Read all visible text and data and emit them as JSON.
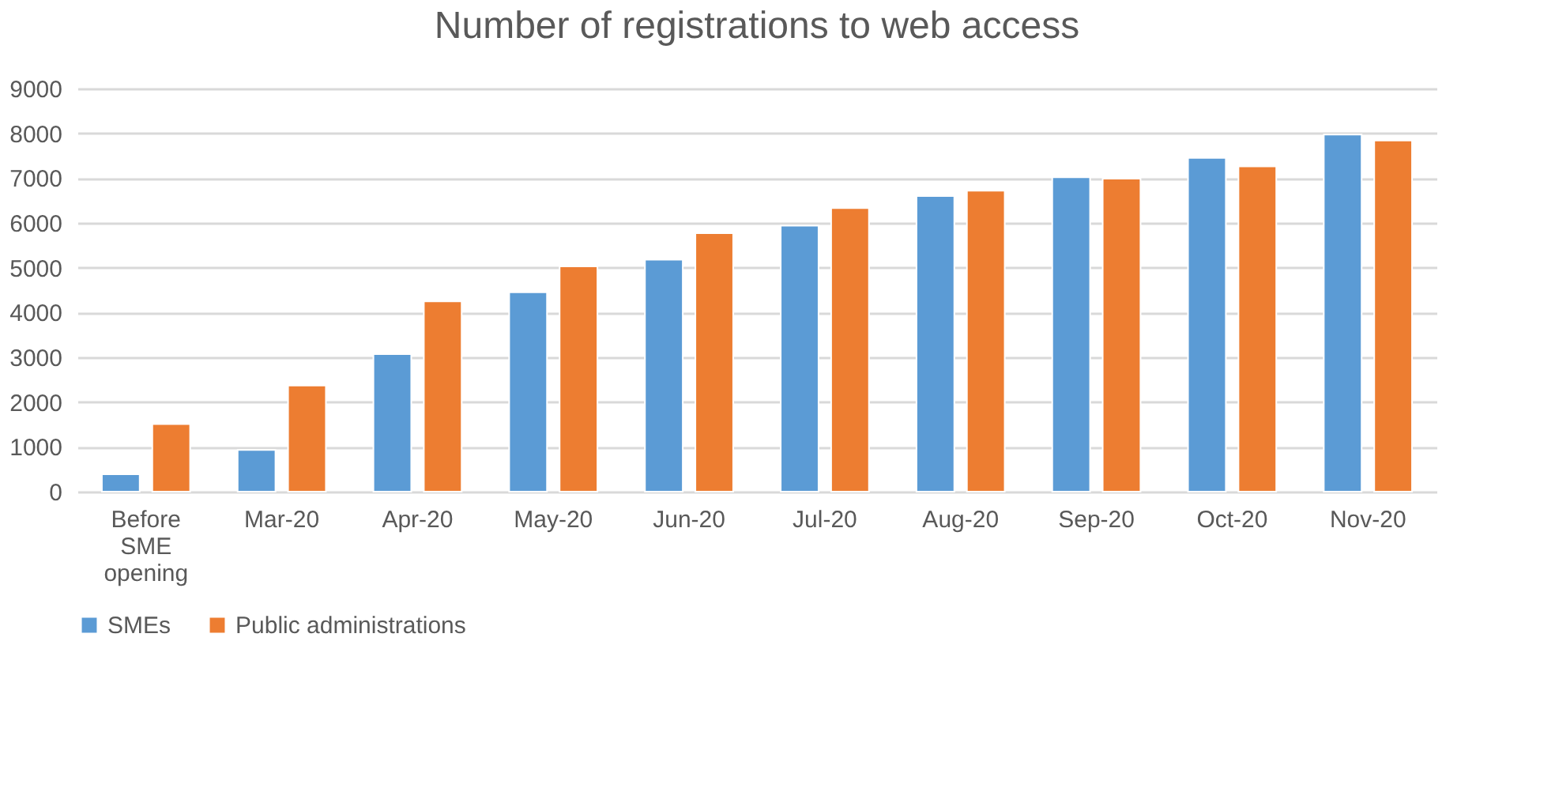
{
  "chart_data": {
    "type": "bar",
    "title": "Number of registrations to web access",
    "categories": [
      "Before SME opening",
      "Mar-20",
      "Apr-20",
      "May-20",
      "Jun-20",
      "Jul-20",
      "Aug-20",
      "Sep-20",
      "Oct-20",
      "Nov-20"
    ],
    "series": [
      {
        "name": "SMEs",
        "color": "#5b9bd5",
        "values": [
          390,
          930,
          3070,
          4450,
          5180,
          5940,
          6600,
          7020,
          7450,
          7970
        ]
      },
      {
        "name": "Public administrations",
        "color": "#ed7d31",
        "values": [
          1510,
          2370,
          4250,
          5030,
          5770,
          6330,
          6720,
          6990,
          7260,
          7840
        ]
      }
    ],
    "ylim": [
      0,
      9000
    ],
    "yticks": [
      0,
      1000,
      2000,
      3000,
      4000,
      5000,
      6000,
      7000,
      8000,
      9000
    ],
    "grid": "y",
    "legend": "bottom"
  }
}
